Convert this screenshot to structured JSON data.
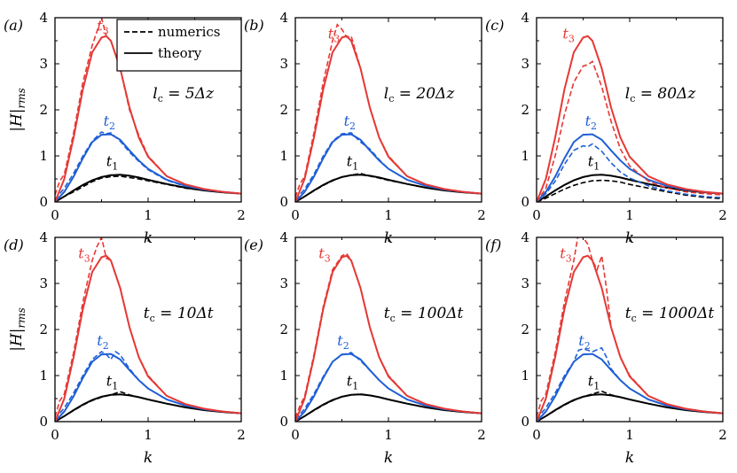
{
  "chart_data": {
    "type": "line",
    "xlabel": "k",
    "ylabel": "|H|rms",
    "xlim": [
      0,
      2
    ],
    "ylim": [
      0,
      4
    ],
    "xticks": [
      "0",
      "1",
      "2"
    ],
    "yticks": [
      "0",
      "1",
      "2",
      "3",
      "4"
    ],
    "legend": {
      "placement": "top-left of panel (a)",
      "entries": [
        {
          "label": "numerics",
          "style": "dashed"
        },
        {
          "label": "theory",
          "style": "solid"
        }
      ]
    },
    "colors": {
      "t1": "#000000",
      "t2": "#1f5fd6",
      "t3": "#e53935"
    },
    "curve_labels": [
      {
        "key": "t1",
        "text": "t1",
        "base": "t",
        "sub": "1"
      },
      {
        "key": "t2",
        "text": "t2",
        "base": "t",
        "sub": "2"
      },
      {
        "key": "t3",
        "text": "t3",
        "base": "t",
        "sub": "3"
      }
    ],
    "theory": {
      "t1": {
        "x": [
          0,
          0.1,
          0.2,
          0.3,
          0.4,
          0.5,
          0.6,
          0.7,
          0.8,
          0.9,
          1.0,
          1.2,
          1.4,
          1.6,
          1.8,
          2.0
        ],
        "y": [
          0,
          0.12,
          0.25,
          0.37,
          0.47,
          0.54,
          0.58,
          0.59,
          0.57,
          0.53,
          0.48,
          0.39,
          0.31,
          0.25,
          0.21,
          0.18
        ]
      },
      "t2": {
        "x": [
          0,
          0.1,
          0.2,
          0.3,
          0.4,
          0.5,
          0.6,
          0.7,
          0.8,
          0.9,
          1.0,
          1.2,
          1.4,
          1.6,
          1.8,
          2.0
        ],
        "y": [
          0,
          0.22,
          0.55,
          0.95,
          1.3,
          1.46,
          1.47,
          1.35,
          1.12,
          0.9,
          0.72,
          0.48,
          0.35,
          0.27,
          0.22,
          0.18
        ]
      },
      "t3": {
        "x": [
          0,
          0.1,
          0.2,
          0.3,
          0.4,
          0.5,
          0.55,
          0.6,
          0.7,
          0.8,
          0.9,
          1.0,
          1.2,
          1.4,
          1.6,
          1.8,
          2.0
        ],
        "y": [
          0,
          0.5,
          1.4,
          2.45,
          3.25,
          3.57,
          3.6,
          3.5,
          2.9,
          2.05,
          1.4,
          0.98,
          0.56,
          0.38,
          0.28,
          0.22,
          0.18
        ]
      }
    },
    "panels": [
      {
        "label": "(a)",
        "annotation": "lc = 5Δz",
        "ann_base": "l",
        "ann_sub": "c",
        "ann_rest": " = 5Δz",
        "numerics": {
          "t1": {
            "x": [
              0,
              0.1,
              0.2,
              0.3,
              0.4,
              0.5,
              0.6,
              0.7,
              0.8,
              0.9,
              1.0,
              1.2,
              1.4,
              1.6,
              1.8,
              2.0
            ],
            "y": [
              0.02,
              0.12,
              0.22,
              0.33,
              0.44,
              0.52,
              0.55,
              0.56,
              0.53,
              0.5,
              0.46,
              0.38,
              0.3,
              0.25,
              0.21,
              0.18
            ]
          },
          "t2": {
            "x": [
              0,
              0.1,
              0.2,
              0.3,
              0.4,
              0.5,
              0.55,
              0.6,
              0.7,
              0.8,
              0.9,
              1.0,
              1.2,
              1.4,
              1.6,
              1.8,
              2.0
            ],
            "y": [
              0.05,
              0.3,
              0.62,
              1.0,
              1.32,
              1.52,
              1.48,
              1.5,
              1.32,
              1.08,
              0.88,
              0.7,
              0.47,
              0.34,
              0.27,
              0.22,
              0.18
            ]
          },
          "t3": {
            "x": [
              0,
              0.05,
              0.1,
              0.2,
              0.3,
              0.4,
              0.45,
              0.5,
              0.55,
              0.6,
              0.7,
              0.8,
              0.9,
              1.0,
              1.2,
              1.4,
              1.6,
              1.8,
              2.0
            ],
            "y": [
              0.15,
              0.45,
              0.6,
              1.5,
              2.6,
              3.4,
              3.7,
              4.0,
              3.6,
              3.5,
              2.9,
              2.0,
              1.45,
              1.0,
              0.56,
              0.38,
              0.28,
              0.22,
              0.18
            ]
          }
        }
      },
      {
        "label": "(b)",
        "annotation": "lc = 20Δz",
        "ann_base": "l",
        "ann_sub": "c",
        "ann_rest": " = 20Δz",
        "numerics": {
          "t1": {
            "x": [
              0,
              0.1,
              0.2,
              0.3,
              0.4,
              0.5,
              0.6,
              0.7,
              0.8,
              0.9,
              1.0,
              1.2,
              1.4,
              1.6,
              1.8,
              2.0
            ],
            "y": [
              0.02,
              0.12,
              0.24,
              0.36,
              0.46,
              0.54,
              0.58,
              0.62,
              0.56,
              0.52,
              0.47,
              0.39,
              0.31,
              0.25,
              0.21,
              0.18
            ]
          },
          "t2": {
            "x": [
              0,
              0.1,
              0.2,
              0.3,
              0.4,
              0.5,
              0.6,
              0.7,
              0.8,
              0.9,
              1.0,
              1.2,
              1.4,
              1.6,
              1.8,
              2.0
            ],
            "y": [
              0.05,
              0.28,
              0.6,
              1.0,
              1.32,
              1.48,
              1.5,
              1.3,
              1.15,
              0.92,
              0.72,
              0.48,
              0.35,
              0.27,
              0.22,
              0.18
            ]
          },
          "t3": {
            "x": [
              0,
              0.05,
              0.1,
              0.2,
              0.3,
              0.4,
              0.45,
              0.5,
              0.55,
              0.6,
              0.7,
              0.8,
              0.9,
              1.0,
              1.2,
              1.4,
              1.6,
              1.8,
              2.0
            ],
            "y": [
              0.1,
              0.4,
              0.55,
              1.5,
              2.6,
              3.5,
              3.85,
              3.75,
              3.58,
              3.6,
              2.9,
              2.05,
              1.4,
              1.0,
              0.56,
              0.38,
              0.28,
              0.22,
              0.18
            ]
          }
        }
      },
      {
        "label": "(c)",
        "annotation": "lc = 80Δz",
        "ann_base": "l",
        "ann_sub": "c",
        "ann_rest": " = 80Δz",
        "numerics": {
          "t1": {
            "x": [
              0,
              0.1,
              0.2,
              0.3,
              0.4,
              0.5,
              0.6,
              0.7,
              0.8,
              0.9,
              1.0,
              1.2,
              1.4,
              1.6,
              1.8,
              2.0
            ],
            "y": [
              0,
              0.08,
              0.18,
              0.28,
              0.36,
              0.42,
              0.46,
              0.47,
              0.46,
              0.43,
              0.38,
              0.3,
              0.22,
              0.15,
              0.1,
              0.07
            ]
          },
          "t2": {
            "x": [
              0,
              0.1,
              0.2,
              0.3,
              0.4,
              0.5,
              0.55,
              0.6,
              0.7,
              0.8,
              0.9,
              1.0,
              1.2,
              1.4,
              1.6,
              1.8,
              2.0
            ],
            "y": [
              0,
              0.18,
              0.45,
              0.82,
              1.12,
              1.22,
              1.2,
              1.26,
              1.1,
              0.85,
              0.65,
              0.52,
              0.35,
              0.24,
              0.17,
              0.12,
              0.09
            ]
          },
          "t3": {
            "x": [
              0,
              0.1,
              0.2,
              0.3,
              0.4,
              0.5,
              0.55,
              0.6,
              0.7,
              0.8,
              0.9,
              1.0,
              1.2,
              1.4,
              1.6,
              1.8,
              2.0
            ],
            "y": [
              0,
              0.3,
              1.0,
              1.9,
              2.6,
              2.95,
              2.98,
              3.05,
              2.5,
              1.75,
              1.15,
              0.78,
              0.45,
              0.3,
              0.22,
              0.18,
              0.15
            ]
          }
        }
      },
      {
        "label": "(d)",
        "annotation": "tc = 10Δt",
        "ann_base": "t",
        "ann_sub": "c",
        "ann_rest": " = 10Δt",
        "numerics": {
          "t1": {
            "x": [
              0,
              0.1,
              0.2,
              0.3,
              0.4,
              0.5,
              0.6,
              0.7,
              0.8,
              0.9,
              1.0,
              1.2,
              1.4,
              1.6,
              1.8,
              2.0
            ],
            "y": [
              0.02,
              0.12,
              0.24,
              0.36,
              0.46,
              0.53,
              0.58,
              0.65,
              0.58,
              0.53,
              0.48,
              0.39,
              0.31,
              0.25,
              0.21,
              0.18
            ]
          },
          "t2": {
            "x": [
              0,
              0.1,
              0.2,
              0.3,
              0.4,
              0.5,
              0.55,
              0.6,
              0.65,
              0.7,
              0.8,
              0.9,
              1.0,
              1.2,
              1.4,
              1.6,
              1.8,
              2.0
            ],
            "y": [
              0.05,
              0.3,
              0.62,
              1.0,
              1.35,
              1.52,
              1.46,
              1.35,
              1.52,
              1.45,
              1.15,
              0.9,
              0.72,
              0.48,
              0.35,
              0.27,
              0.22,
              0.18
            ]
          },
          "t3": {
            "x": [
              0,
              0.05,
              0.1,
              0.2,
              0.3,
              0.4,
              0.45,
              0.5,
              0.55,
              0.6,
              0.7,
              0.8,
              0.9,
              1.0,
              1.2,
              1.4,
              1.6,
              1.8,
              2.0
            ],
            "y": [
              0.1,
              0.45,
              0.6,
              1.5,
              2.6,
              3.5,
              3.8,
              4.0,
              3.55,
              3.5,
              2.9,
              2.05,
              1.4,
              1.0,
              0.56,
              0.38,
              0.28,
              0.22,
              0.18
            ]
          }
        }
      },
      {
        "label": "(e)",
        "annotation": "tc = 100Δt",
        "ann_base": "t",
        "ann_sub": "c",
        "ann_rest": " = 100Δt",
        "numerics": {
          "t1": {
            "x": [
              0,
              0.1,
              0.2,
              0.3,
              0.4,
              0.5,
              0.6,
              0.7,
              0.8,
              0.9,
              1.0,
              1.2,
              1.4,
              1.6,
              1.8,
              2.0
            ],
            "y": [
              0.02,
              0.12,
              0.24,
              0.36,
              0.46,
              0.54,
              0.58,
              0.6,
              0.57,
              0.53,
              0.48,
              0.39,
              0.31,
              0.25,
              0.21,
              0.18
            ]
          },
          "t2": {
            "x": [
              0,
              0.1,
              0.2,
              0.3,
              0.4,
              0.5,
              0.6,
              0.7,
              0.8,
              0.9,
              1.0,
              1.2,
              1.4,
              1.6,
              1.8,
              2.0
            ],
            "y": [
              0.05,
              0.28,
              0.6,
              0.98,
              1.3,
              1.45,
              1.5,
              1.32,
              1.12,
              0.9,
              0.72,
              0.48,
              0.35,
              0.27,
              0.22,
              0.18
            ]
          },
          "t3": {
            "x": [
              0,
              0.05,
              0.1,
              0.2,
              0.3,
              0.4,
              0.5,
              0.55,
              0.6,
              0.7,
              0.8,
              0.9,
              1.0,
              1.2,
              1.4,
              1.6,
              1.8,
              2.0
            ],
            "y": [
              0.08,
              0.35,
              0.55,
              1.45,
              2.5,
              3.3,
              3.6,
              3.65,
              3.5,
              2.9,
              2.05,
              1.4,
              1.0,
              0.56,
              0.38,
              0.28,
              0.22,
              0.18
            ]
          }
        }
      },
      {
        "label": "(f)",
        "annotation": "tc = 1000Δt",
        "ann_base": "t",
        "ann_sub": "c",
        "ann_rest": " = 1000Δt",
        "numerics": {
          "t1": {
            "x": [
              0,
              0.1,
              0.2,
              0.3,
              0.4,
              0.5,
              0.6,
              0.7,
              0.8,
              0.9,
              1.0,
              1.2,
              1.4,
              1.6,
              1.8,
              2.0
            ],
            "y": [
              0.02,
              0.12,
              0.24,
              0.36,
              0.46,
              0.54,
              0.6,
              0.66,
              0.58,
              0.53,
              0.48,
              0.39,
              0.31,
              0.25,
              0.21,
              0.18
            ]
          },
          "t2": {
            "x": [
              0,
              0.1,
              0.2,
              0.3,
              0.4,
              0.45,
              0.5,
              0.6,
              0.7,
              0.75,
              0.8,
              0.9,
              1.0,
              1.2,
              1.4,
              1.6,
              1.8,
              2.0
            ],
            "y": [
              0.05,
              0.3,
              0.62,
              1.0,
              1.3,
              1.55,
              1.58,
              1.52,
              1.6,
              1.4,
              1.15,
              0.9,
              0.72,
              0.48,
              0.35,
              0.27,
              0.22,
              0.18
            ]
          },
          "t3": {
            "x": [
              0,
              0.05,
              0.1,
              0.2,
              0.3,
              0.4,
              0.45,
              0.5,
              0.55,
              0.6,
              0.65,
              0.7,
              0.75,
              0.8,
              0.9,
              1.0,
              1.2,
              1.4,
              1.6,
              1.8,
              2.0
            ],
            "y": [
              0.1,
              0.45,
              0.6,
              1.5,
              2.6,
              3.5,
              4.1,
              4.0,
              3.85,
              3.5,
              3.3,
              3.6,
              2.9,
              2.05,
              1.4,
              1.0,
              0.56,
              0.38,
              0.28,
              0.22,
              0.18
            ]
          }
        }
      }
    ]
  }
}
